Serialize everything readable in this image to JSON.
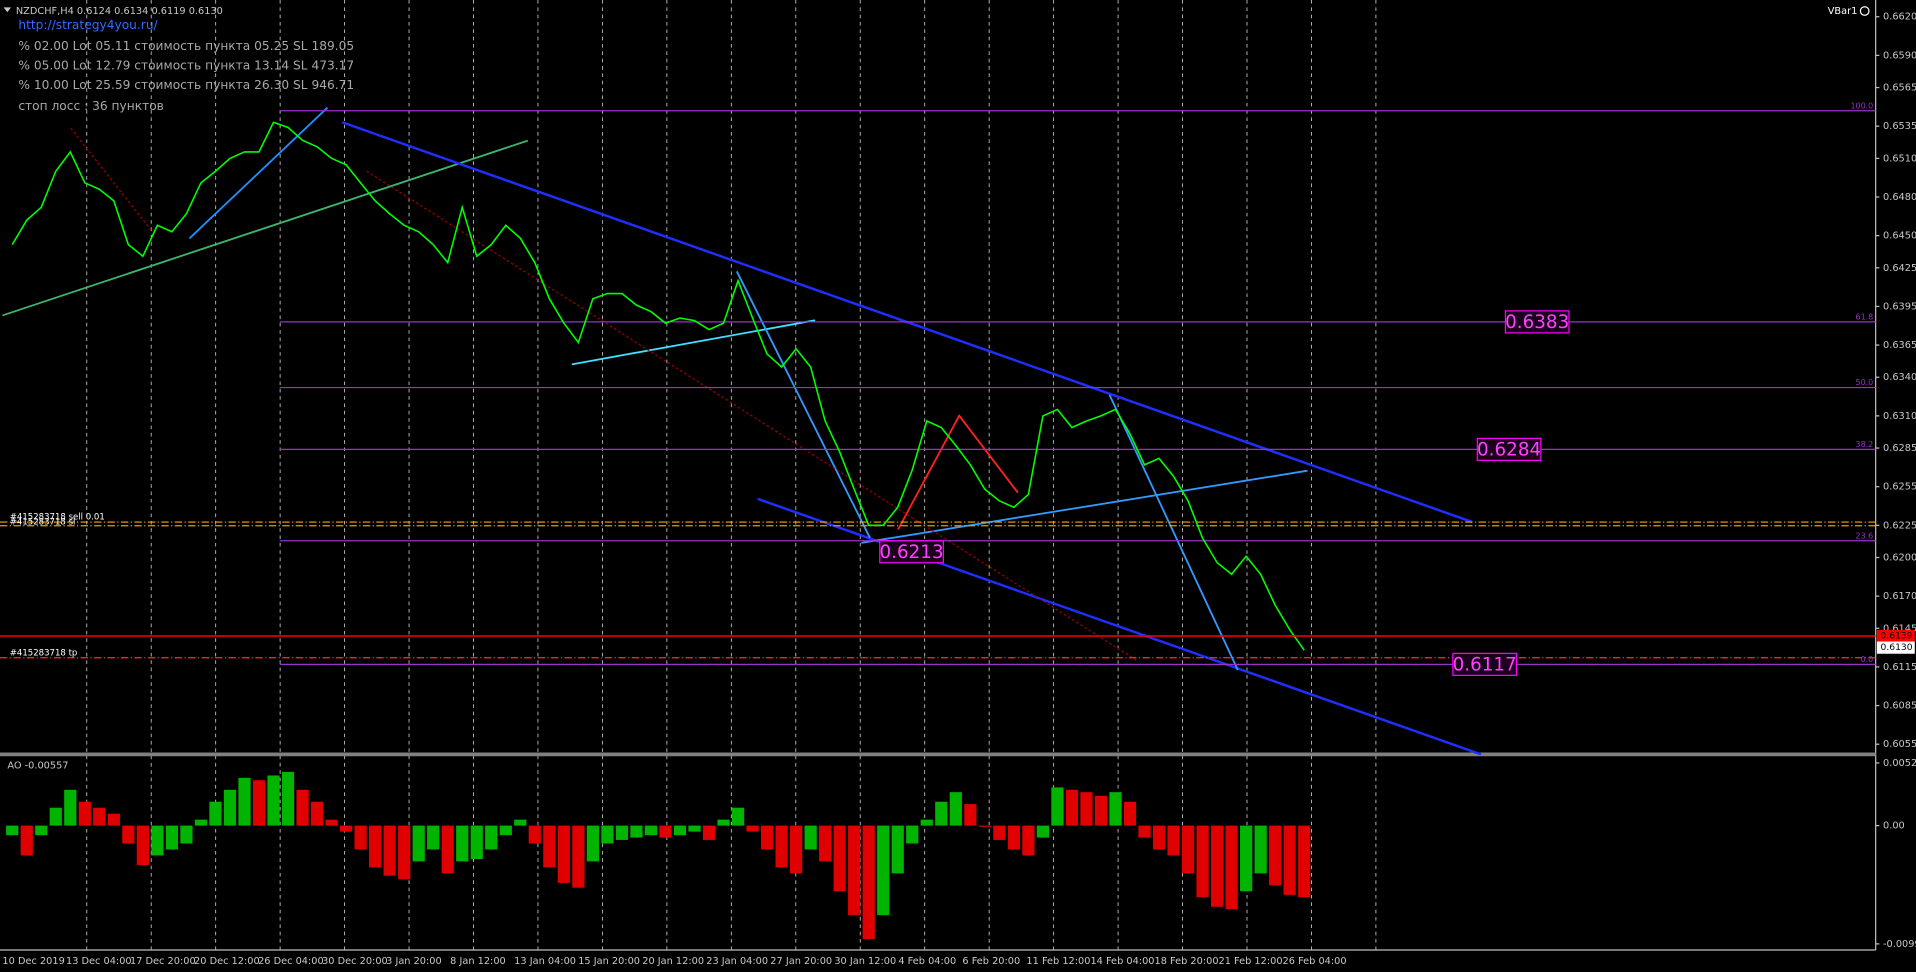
{
  "header": {
    "title": "NZDCHF,H4 0.6124 0.6134 0.6119 0.6130",
    "link": "http://strategy4you.ru/",
    "info_lines": [
      "% 02.00 Lot 05.11 стоимость пункта 05.25 SL 189.05",
      "% 05.00 Lot 12.79 стоимость пункта 13.14 SL 473.17",
      "% 10.00 Lot 25.59 стоимость пункта 26.30 SL 946.71",
      "стоп лосс : 36 пунктов"
    ],
    "indicator": "VBar1"
  },
  "orders": {
    "sell": "#415283718 sell 0.01",
    "sl": "#415283718 sl",
    "tp": "#415283718 tp"
  },
  "chart_data": [
    {
      "type": "line",
      "color": "#00ff00",
      "xtick_labels": [
        "10 Dec 2019",
        "13 Dec 04:00",
        "17 Dec 20:00",
        "20 Dec 12:00",
        "26 Dec 04:00",
        "30 Dec 20:00",
        "3 Jan 20:00",
        "8 Jan 12:00",
        "13 Jan 04:00",
        "15 Jan 20:00",
        "20 Jan 12:00",
        "23 Jan 04:00",
        "27 Jan 20:00",
        "30 Jan 12:00",
        "4 Feb 04:00",
        "6 Feb 20:00",
        "11 Feb 12:00",
        "14 Feb 04:00",
        "18 Feb 20:00",
        "21 Feb 12:00",
        "26 Feb 04:00"
      ],
      "values": [
        0.6443,
        0.6462,
        0.6472,
        0.65,
        0.6515,
        0.6491,
        0.6486,
        0.6477,
        0.6443,
        0.6434,
        0.6458,
        0.6453,
        0.6467,
        0.6491,
        0.65,
        0.651,
        0.6515,
        0.6515,
        0.6538,
        0.6534,
        0.6524,
        0.6519,
        0.651,
        0.6505,
        0.6491,
        0.6477,
        0.6467,
        0.6458,
        0.6453,
        0.6443,
        0.6429,
        0.6472,
        0.6434,
        0.6443,
        0.6458,
        0.6448,
        0.6429,
        0.6401,
        0.6382,
        0.6367,
        0.6401,
        0.6405,
        0.6405,
        0.6396,
        0.6391,
        0.6382,
        0.6386,
        0.6384,
        0.6377,
        0.6382,
        0.6415,
        0.6386,
        0.6358,
        0.6348,
        0.6362,
        0.6348,
        0.6306,
        0.6282,
        0.6253,
        0.6225,
        0.6225,
        0.6239,
        0.6268,
        0.6306,
        0.6301,
        0.6287,
        0.6272,
        0.6253,
        0.6244,
        0.6239,
        0.6249,
        0.631,
        0.6315,
        0.6301,
        0.6306,
        0.631,
        0.6315,
        0.6296,
        0.6272,
        0.6277,
        0.6263,
        0.6244,
        0.6215,
        0.6196,
        0.6187,
        0.6201,
        0.6187,
        0.6163,
        0.6144,
        0.6128
      ],
      "ylim": [
        0.6049,
        0.6633
      ],
      "yticks": [
        {
          "value": 0.662,
          "label": "0.6620"
        },
        {
          "value": 0.659,
          "label": "0.6590"
        },
        0.6565,
        0.6535,
        {
          "value": 0.651,
          "label": "0.6510"
        },
        {
          "value": 0.648,
          "label": "0.6480"
        },
        {
          "value": 0.645,
          "label": "0.6450"
        },
        0.6425,
        0.6395,
        0.6365,
        {
          "value": 0.634,
          "label": "0.6340"
        },
        {
          "value": 0.631,
          "label": "0.6310"
        },
        0.6285,
        0.6255,
        0.6225,
        {
          "value": 0.62,
          "label": "0.6200"
        },
        {
          "value": 0.617,
          "label": "0.6170"
        },
        0.6145,
        0.6115,
        0.6085,
        0.6055
      ],
      "fib_levels": [
        {
          "ratio": {
            "value": 100,
            "label": "100.0"
          },
          "price": 0.6547
        },
        {
          "ratio": 61.8,
          "price": 0.6383
        },
        {
          "ratio": {
            "value": 50,
            "label": "50.0"
          },
          "price": 0.6332
        },
        {
          "ratio": 38.2,
          "price": 0.6284
        },
        {
          "ratio": 23.6,
          "price": 0.6213
        },
        {
          "ratio": {
            "value": 0,
            "label": "0.0"
          },
          "price": 0.6117
        }
      ],
      "current_price": {
        "value": 0.613,
        "label": "0.6130"
      },
      "stop_price": 0.6139
    },
    {
      "type": "bar",
      "title": "AO -0.00557",
      "values": [
        -0.0008,
        -0.0025,
        -0.0008,
        0.0015,
        0.003,
        0.002,
        0.0015,
        0.001,
        -0.0015,
        -0.0033,
        -0.0025,
        -0.002,
        -0.0015,
        0.0005,
        0.002,
        0.003,
        0.004,
        0.0038,
        0.0042,
        0.0045,
        0.003,
        0.002,
        0.0005,
        -0.0005,
        -0.002,
        -0.0035,
        -0.0042,
        -0.0045,
        -0.003,
        -0.002,
        -0.004,
        -0.003,
        -0.0028,
        -0.002,
        -0.0008,
        0.0005,
        -0.0015,
        -0.0035,
        -0.0048,
        -0.0052,
        -0.003,
        -0.0015,
        -0.0012,
        -0.001,
        -0.0008,
        -0.001,
        -0.0008,
        -0.0005,
        -0.0012,
        0.0005,
        0.0015,
        -0.0005,
        -0.002,
        -0.0035,
        -0.004,
        -0.002,
        -0.003,
        -0.0055,
        -0.0075,
        -0.0095,
        -0.0075,
        -0.004,
        -0.0015,
        0.0005,
        0.002,
        0.0028,
        0.0018,
        -0.0001,
        -0.0012,
        -0.002,
        -0.0025,
        -0.001,
        0.0032,
        0.003,
        0.0028,
        0.0025,
        0.0028,
        0.002,
        -0.001,
        -0.002,
        -0.0025,
        -0.004,
        -0.006,
        -0.0068,
        -0.007,
        -0.0055,
        -0.004,
        -0.005,
        -0.0058,
        -0.006
      ],
      "ylim": [
        -0.01042,
        0.00566
      ],
      "yticks": [
        0.00525,
        {
          "value": 0,
          "label": "0.00"
        },
        -0.00991
      ],
      "up_color": "#00b400",
      "down_color": "#e00000"
    }
  ]
}
